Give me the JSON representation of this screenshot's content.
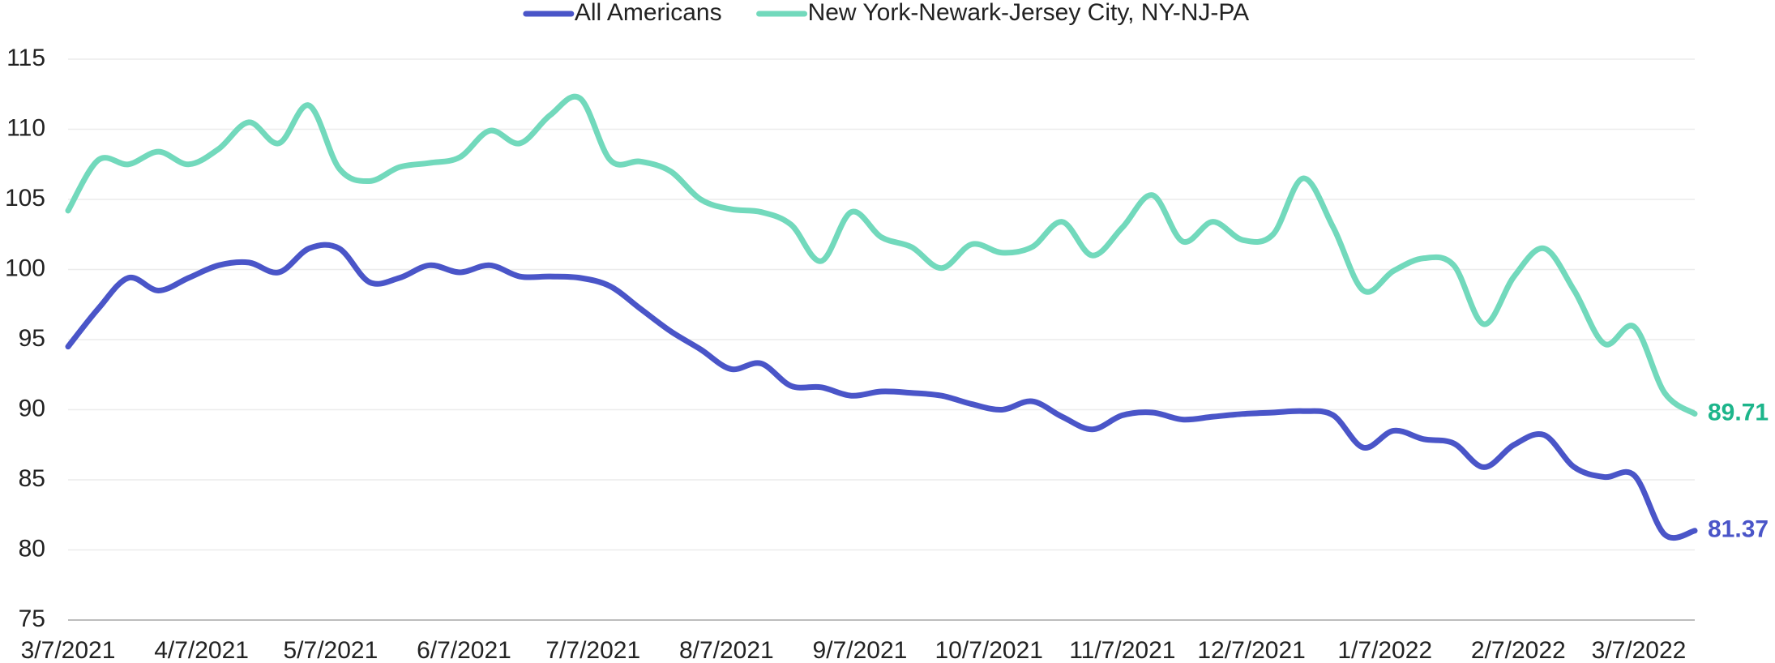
{
  "chart_data": {
    "type": "line",
    "x": [
      "3/7/2021",
      "3/14/2021",
      "3/21/2021",
      "3/28/2021",
      "4/4/2021",
      "4/11/2021",
      "4/18/2021",
      "4/25/2021",
      "5/2/2021",
      "5/9/2021",
      "5/16/2021",
      "5/23/2021",
      "5/30/2021",
      "6/6/2021",
      "6/13/2021",
      "6/20/2021",
      "6/27/2021",
      "7/4/2021",
      "7/11/2021",
      "7/18/2021",
      "7/25/2021",
      "8/1/2021",
      "8/8/2021",
      "8/15/2021",
      "8/22/2021",
      "8/29/2021",
      "9/5/2021",
      "9/12/2021",
      "9/19/2021",
      "9/26/2021",
      "10/3/2021",
      "10/10/2021",
      "10/17/2021",
      "10/24/2021",
      "10/31/2021",
      "11/7/2021",
      "11/14/2021",
      "11/21/2021",
      "11/28/2021",
      "12/5/2021",
      "12/12/2021",
      "12/19/2021",
      "12/26/2021",
      "1/2/2022",
      "1/9/2022",
      "1/16/2022",
      "1/23/2022",
      "1/30/2022",
      "2/6/2022",
      "2/13/2022",
      "2/20/2022",
      "2/27/2022",
      "3/6/2022",
      "3/13/2022",
      "3/20/2022"
    ],
    "series": [
      {
        "name": "All Americans",
        "color": "#4a55c8",
        "label_color": "#4a55c8",
        "values": [
          94.5,
          97.2,
          99.4,
          98.5,
          99.4,
          100.3,
          100.5,
          99.8,
          101.5,
          101.5,
          99.1,
          99.4,
          100.3,
          99.8,
          100.3,
          99.5,
          99.5,
          99.4,
          98.8,
          97.2,
          95.6,
          94.3,
          92.9,
          93.3,
          91.7,
          91.6,
          91.0,
          91.3,
          91.2,
          91.0,
          90.4,
          90.0,
          90.6,
          89.5,
          88.6,
          89.6,
          89.8,
          89.3,
          89.5,
          89.7,
          89.8,
          89.9,
          89.6,
          87.3,
          88.5,
          87.9,
          87.6,
          85.9,
          87.5,
          88.2,
          85.9,
          85.2,
          85.3,
          81.1,
          81.37
        ]
      },
      {
        "name": "New York-Newark-Jersey City, NY-NJ-PA",
        "color": "#72d9bc",
        "label_color": "#1db58b",
        "values": [
          104.2,
          107.8,
          107.5,
          108.4,
          107.5,
          108.6,
          110.5,
          109.0,
          111.7,
          107.2,
          106.3,
          107.3,
          107.6,
          108.0,
          109.9,
          109.0,
          111.0,
          112.2,
          107.8,
          107.7,
          107.0,
          105.0,
          104.3,
          104.1,
          103.2,
          100.6,
          104.1,
          102.3,
          101.6,
          100.1,
          101.8,
          101.2,
          101.6,
          103.4,
          101.0,
          103.0,
          105.3,
          102.0,
          103.4,
          102.1,
          102.5,
          106.5,
          103.0,
          98.5,
          99.9,
          100.8,
          100.3,
          96.1,
          99.5,
          101.5,
          98.5,
          94.7,
          95.9,
          91.2,
          89.71
        ]
      }
    ],
    "xticks": [
      "3/7/2021",
      "4/7/2021",
      "5/7/2021",
      "6/7/2021",
      "7/7/2021",
      "8/7/2021",
      "9/7/2021",
      "10/7/2021",
      "11/7/2021",
      "12/7/2021",
      "1/7/2022",
      "2/7/2022",
      "3/7/2022"
    ],
    "ylim": [
      75,
      115
    ],
    "yticks": [
      75,
      80,
      85,
      90,
      95,
      100,
      105,
      110,
      115
    ],
    "grid": true,
    "legend": "top",
    "end_labels": true
  }
}
